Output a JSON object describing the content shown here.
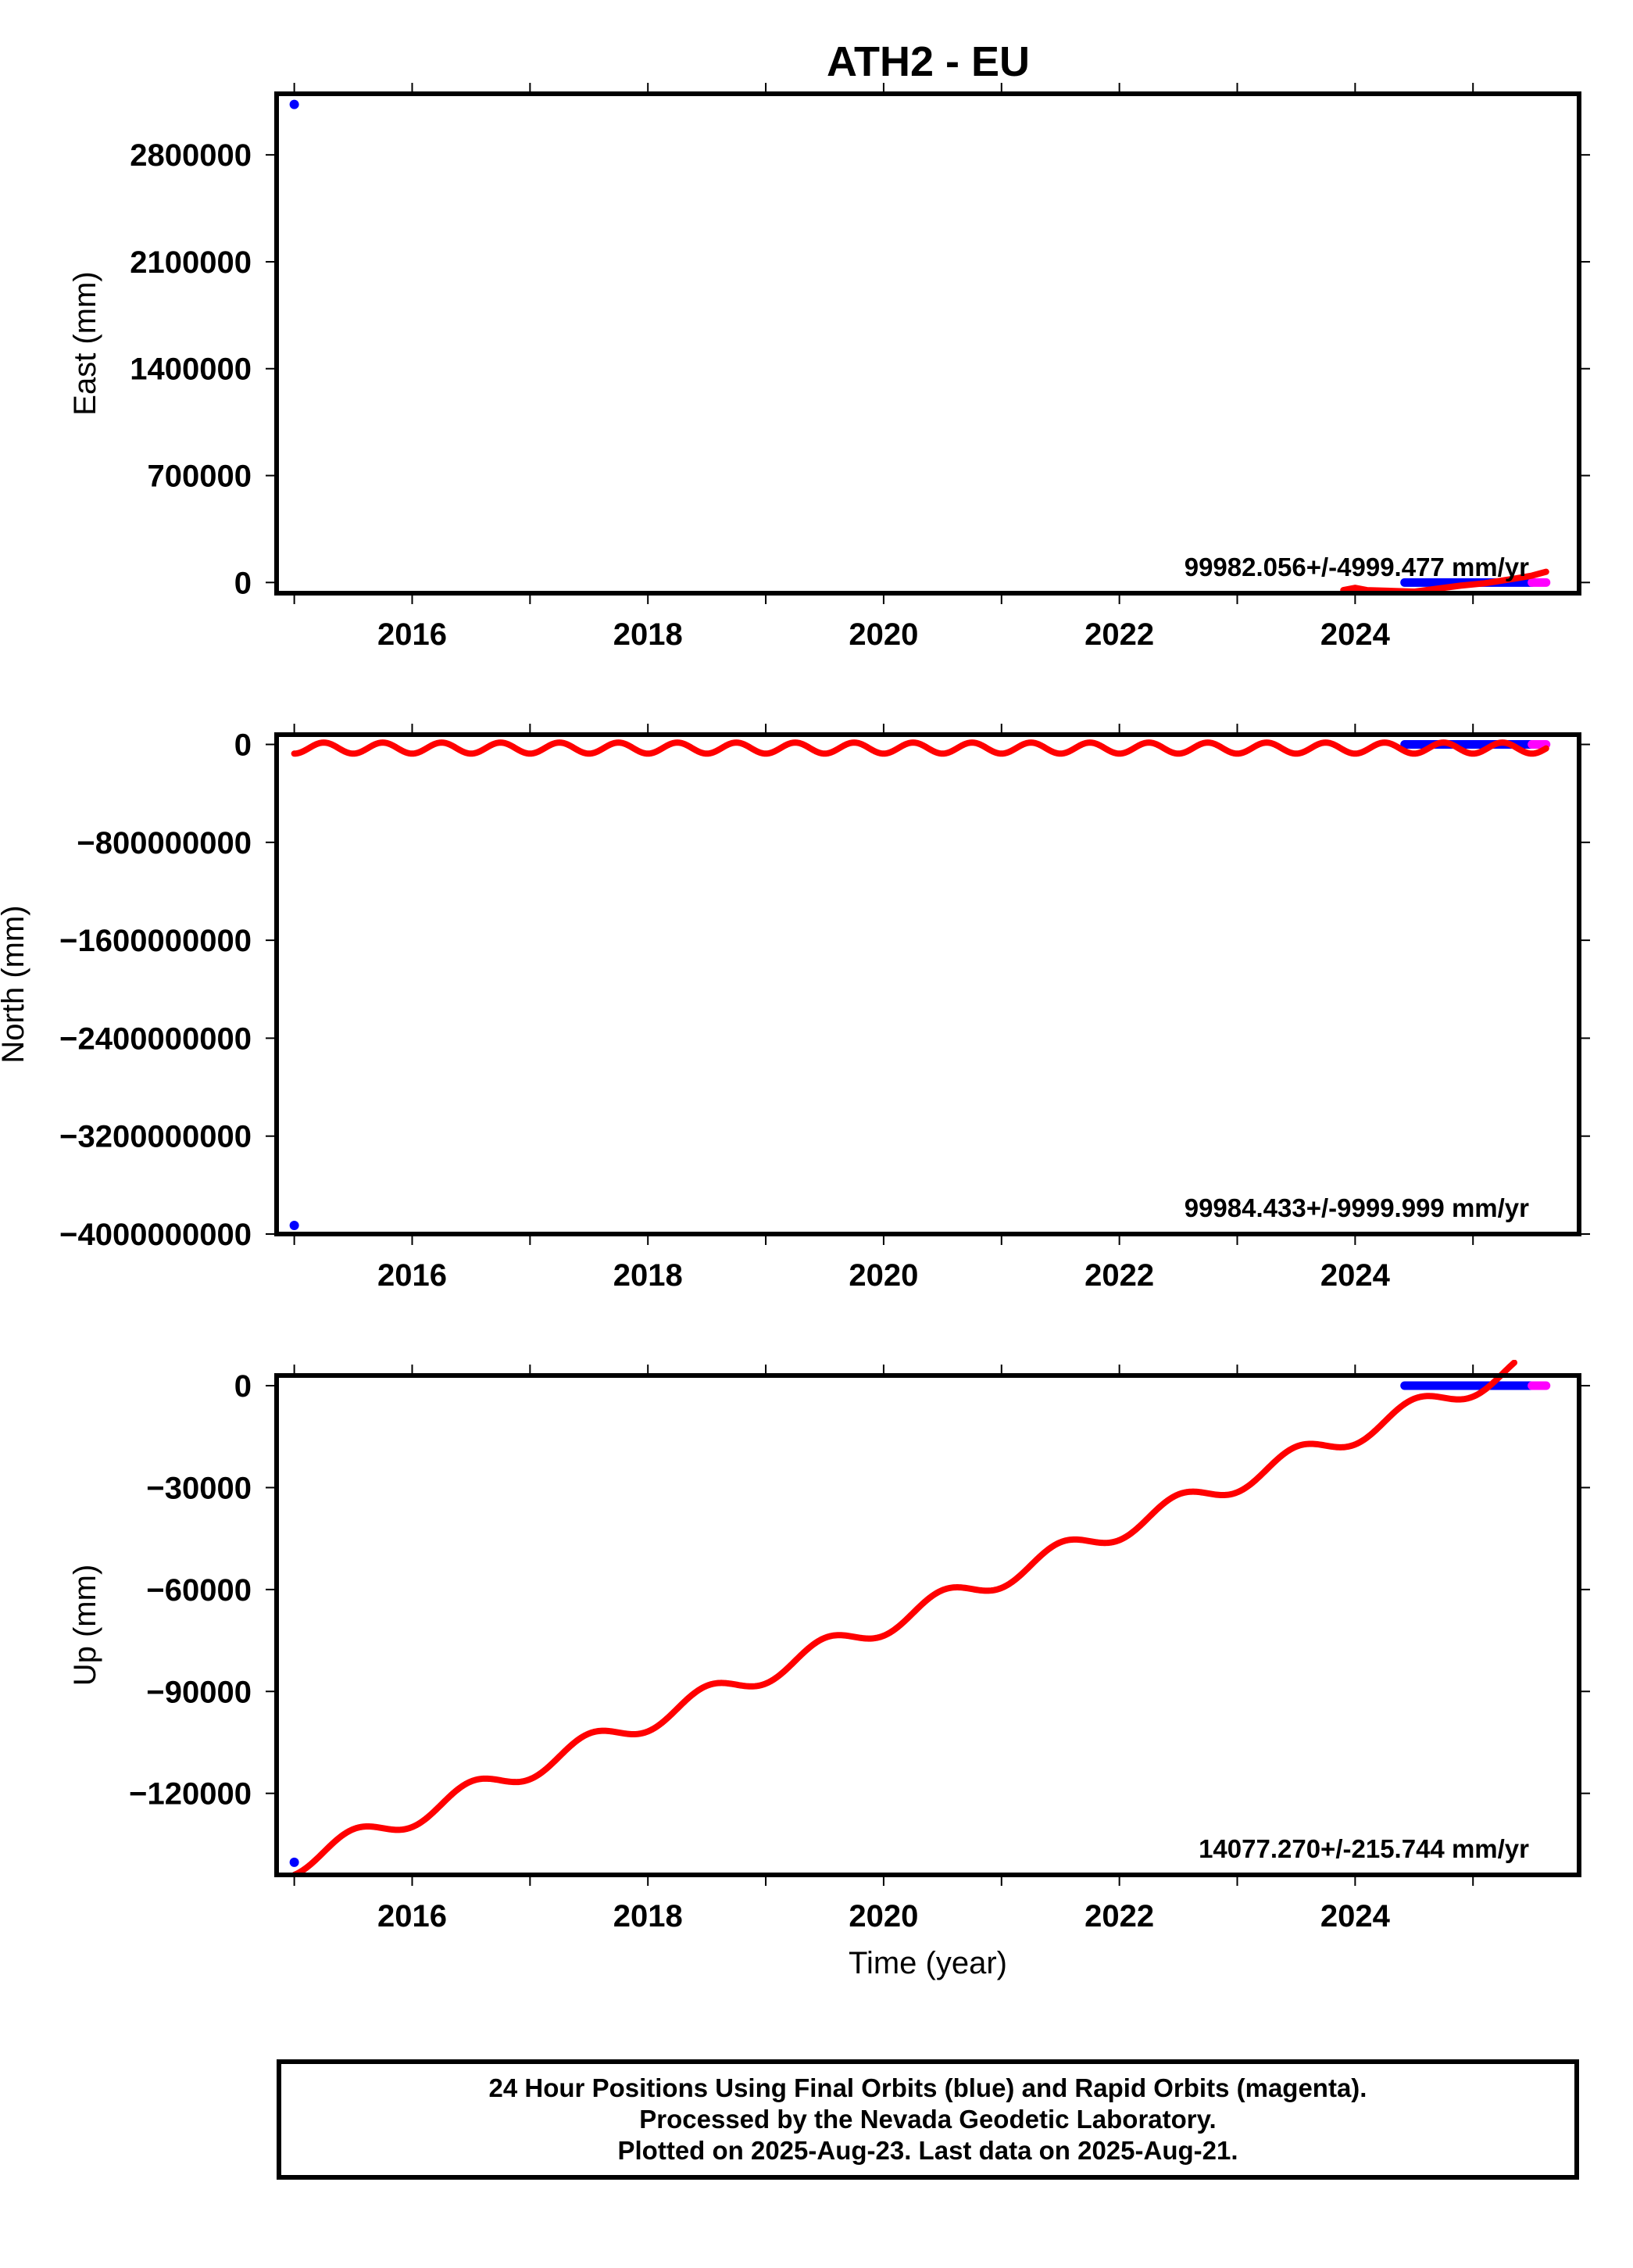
{
  "title": "ATH2 - EU",
  "colors": {
    "final_orbits": "#0000ff",
    "rapid_orbits": "#ff00ff",
    "model": "#ff0000",
    "frame": "#000000"
  },
  "chart_data": [
    {
      "type": "scatter",
      "title": "ATH2 - EU",
      "ylabel": "East (mm)",
      "xlabel": "",
      "xlim": [
        2014.85,
        2025.9
      ],
      "ylim": [
        -70000,
        3200000
      ],
      "yticks": [
        0,
        700000,
        1400000,
        2100000,
        2800000
      ],
      "xticks": [
        2016,
        2018,
        2020,
        2022,
        2024
      ],
      "rate_label": "99982.056+/-4999.477 mm/yr",
      "series": [
        {
          "name": "final orbits",
          "color": "#0000ff",
          "points": [
            [
              2015.0,
              3130000
            ],
            [
              2024.42,
              0
            ],
            [
              2025.5,
              0
            ]
          ]
        },
        {
          "name": "rapid orbits",
          "color": "#ff00ff",
          "points": [
            [
              2025.5,
              0
            ],
            [
              2025.62,
              0
            ]
          ]
        },
        {
          "name": "model",
          "color": "#ff0000",
          "points": [
            [
              2023.9,
              -50000
            ],
            [
              2024.0,
              -35000
            ],
            [
              2024.1,
              -50000
            ],
            [
              2024.5,
              -60000
            ],
            [
              2024.9,
              -20000
            ],
            [
              2025.1,
              -5000
            ],
            [
              2025.35,
              25000
            ],
            [
              2025.5,
              45000
            ],
            [
              2025.62,
              70000
            ]
          ]
        }
      ]
    },
    {
      "type": "scatter",
      "ylabel": "North (mm)",
      "xlabel": "",
      "xlim": [
        2014.85,
        2025.9
      ],
      "ylim": [
        -4000000000,
        80000000
      ],
      "yticks": [
        0,
        -800000000,
        -1600000000,
        -2400000000,
        -3200000000,
        -4000000000
      ],
      "xticks": [
        2016,
        2018,
        2020,
        2022,
        2024
      ],
      "rate_label": "99984.433+/-9999.999 mm/yr",
      "model": {
        "offset": -30000000,
        "amplitude": 45000000,
        "period_years": 0.5,
        "start": 2015.0,
        "end": 2025.62
      },
      "series": [
        {
          "name": "final orbits",
          "color": "#0000ff",
          "points": [
            [
              2015.0,
              -3930000000
            ],
            [
              2024.42,
              0
            ],
            [
              2025.5,
              0
            ]
          ]
        },
        {
          "name": "rapid orbits",
          "color": "#ff00ff",
          "points": [
            [
              2025.5,
              0
            ],
            [
              2025.62,
              0
            ]
          ]
        }
      ]
    },
    {
      "type": "scatter",
      "ylabel": "Up (mm)",
      "xlabel": "Time (year)",
      "xlim": [
        2014.85,
        2025.9
      ],
      "ylim": [
        -144000,
        3000
      ],
      "yticks": [
        0,
        -30000,
        -60000,
        -90000,
        -120000
      ],
      "xticks": [
        2016,
        2018,
        2020,
        2022,
        2024
      ],
      "rate_label": "14077.270+/-215.744 mm/yr",
      "model": {
        "value_at_start": -140800,
        "rate_per_year": 14077.27,
        "amplitude": 3200,
        "period_years": 1.0,
        "start": 2015.0,
        "end": 2025.35
      },
      "series": [
        {
          "name": "final orbits",
          "color": "#0000ff",
          "points": [
            [
              2015.0,
              -140300
            ],
            [
              2024.42,
              0
            ],
            [
              2025.5,
              0
            ]
          ]
        },
        {
          "name": "rapid orbits",
          "color": "#ff00ff",
          "points": [
            [
              2025.5,
              0
            ],
            [
              2025.62,
              0
            ]
          ]
        }
      ]
    }
  ],
  "footer": {
    "line1": "24 Hour Positions Using Final Orbits (blue) and Rapid Orbits (magenta).",
    "line2": "Processed by the Nevada Geodetic Laboratory.",
    "line3": "Plotted on 2025-Aug-23. Last data on 2025-Aug-21."
  }
}
